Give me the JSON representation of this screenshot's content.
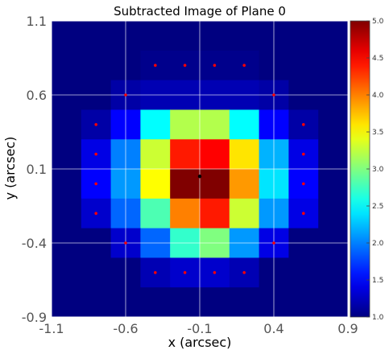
{
  "chart_data": {
    "type": "heatmap",
    "title": "Subtracted Image of Plane 0",
    "xlabel": "x (arcsec)",
    "ylabel": "y (arcsec)",
    "xlim": [
      -1.1,
      0.9
    ],
    "ylim": [
      -0.9,
      1.1
    ],
    "xticks": [
      "-1.1",
      "-0.6",
      "-0.1",
      "0.4",
      "0.9"
    ],
    "yticks": [
      "-0.9",
      "-0.4",
      "0.1",
      "0.6",
      "1.1"
    ],
    "xtick_values": [
      -1.1,
      -0.6,
      -0.1,
      0.4,
      0.9
    ],
    "ytick_values": [
      -0.9,
      -0.4,
      0.1,
      0.6,
      1.1
    ],
    "grid": true,
    "colormap": "jet",
    "colorbar": {
      "vmin": 1.0,
      "vmax": 5.0,
      "ticks": [
        "1.0",
        "1.5",
        "2.0",
        "2.5",
        "3.0",
        "3.5",
        "4.0",
        "4.5",
        "5.0"
      ],
      "tick_values": [
        1.0,
        1.5,
        2.0,
        2.5,
        3.0,
        3.5,
        4.0,
        4.5,
        5.0
      ]
    },
    "grid_x_edges": [
      -1.1,
      -0.9,
      -0.7,
      -0.5,
      -0.3,
      -0.1,
      0.1,
      0.3,
      0.5,
      0.7,
      0.9
    ],
    "grid_y_edges_top_to_bottom": [
      1.1,
      0.9,
      0.7,
      0.5,
      0.3,
      0.1,
      -0.1,
      -0.3,
      -0.5,
      -0.7,
      -0.9
    ],
    "values_rows_top_to_bottom": [
      [
        1.0,
        1.0,
        1.0,
        1.0,
        1.0,
        1.0,
        1.0,
        1.0,
        1.0,
        1.0
      ],
      [
        1.0,
        1.0,
        1.0,
        1.05,
        1.05,
        1.05,
        1.05,
        1.0,
        1.0,
        1.0
      ],
      [
        1.0,
        1.0,
        1.15,
        1.2,
        1.2,
        1.2,
        1.2,
        1.15,
        1.0,
        1.0
      ],
      [
        1.0,
        1.15,
        1.5,
        2.5,
        3.2,
        3.2,
        2.5,
        1.5,
        1.15,
        1.0
      ],
      [
        1.0,
        1.4,
        2.0,
        3.3,
        4.4,
        4.5,
        3.6,
        2.2,
        1.4,
        1.0
      ],
      [
        1.0,
        1.5,
        2.1,
        3.5,
        5.0,
        5.0,
        3.9,
        2.4,
        1.5,
        1.0
      ],
      [
        1.0,
        1.3,
        1.9,
        2.8,
        4.0,
        4.4,
        3.3,
        2.1,
        1.4,
        1.0
      ],
      [
        1.0,
        1.0,
        1.3,
        1.9,
        2.7,
        3.0,
        2.1,
        1.4,
        1.0,
        1.0
      ],
      [
        1.0,
        1.0,
        1.0,
        1.2,
        1.3,
        1.3,
        1.2,
        1.0,
        1.0,
        1.0
      ],
      [
        1.0,
        1.0,
        1.0,
        1.0,
        1.0,
        1.0,
        1.0,
        1.0,
        1.0,
        1.0
      ]
    ],
    "points": [
      {
        "x": -0.4,
        "y": 0.8,
        "color": "#ff0000"
      },
      {
        "x": -0.2,
        "y": 0.8,
        "color": "#ff0000"
      },
      {
        "x": 0.0,
        "y": 0.8,
        "color": "#ff0000"
      },
      {
        "x": 0.2,
        "y": 0.8,
        "color": "#ff0000"
      },
      {
        "x": -0.6,
        "y": 0.6,
        "color": "#ff0000"
      },
      {
        "x": 0.4,
        "y": 0.6,
        "color": "#ff0000"
      },
      {
        "x": -0.8,
        "y": 0.4,
        "color": "#ff0000"
      },
      {
        "x": 0.6,
        "y": 0.4,
        "color": "#ff0000"
      },
      {
        "x": -0.8,
        "y": 0.2,
        "color": "#ff0000"
      },
      {
        "x": 0.6,
        "y": 0.2,
        "color": "#ff0000"
      },
      {
        "x": -0.8,
        "y": 0.0,
        "color": "#ff0000"
      },
      {
        "x": 0.6,
        "y": 0.0,
        "color": "#ff0000"
      },
      {
        "x": -0.8,
        "y": -0.2,
        "color": "#ff0000"
      },
      {
        "x": 0.6,
        "y": -0.2,
        "color": "#ff0000"
      },
      {
        "x": -0.6,
        "y": -0.4,
        "color": "#ff0000"
      },
      {
        "x": 0.4,
        "y": -0.4,
        "color": "#ff0000"
      },
      {
        "x": -0.4,
        "y": -0.6,
        "color": "#ff0000"
      },
      {
        "x": -0.2,
        "y": -0.6,
        "color": "#ff0000"
      },
      {
        "x": 0.0,
        "y": -0.6,
        "color": "#ff0000"
      },
      {
        "x": 0.2,
        "y": -0.6,
        "color": "#ff0000"
      },
      {
        "x": -0.1,
        "y": 0.05,
        "color": "#000000"
      }
    ]
  }
}
